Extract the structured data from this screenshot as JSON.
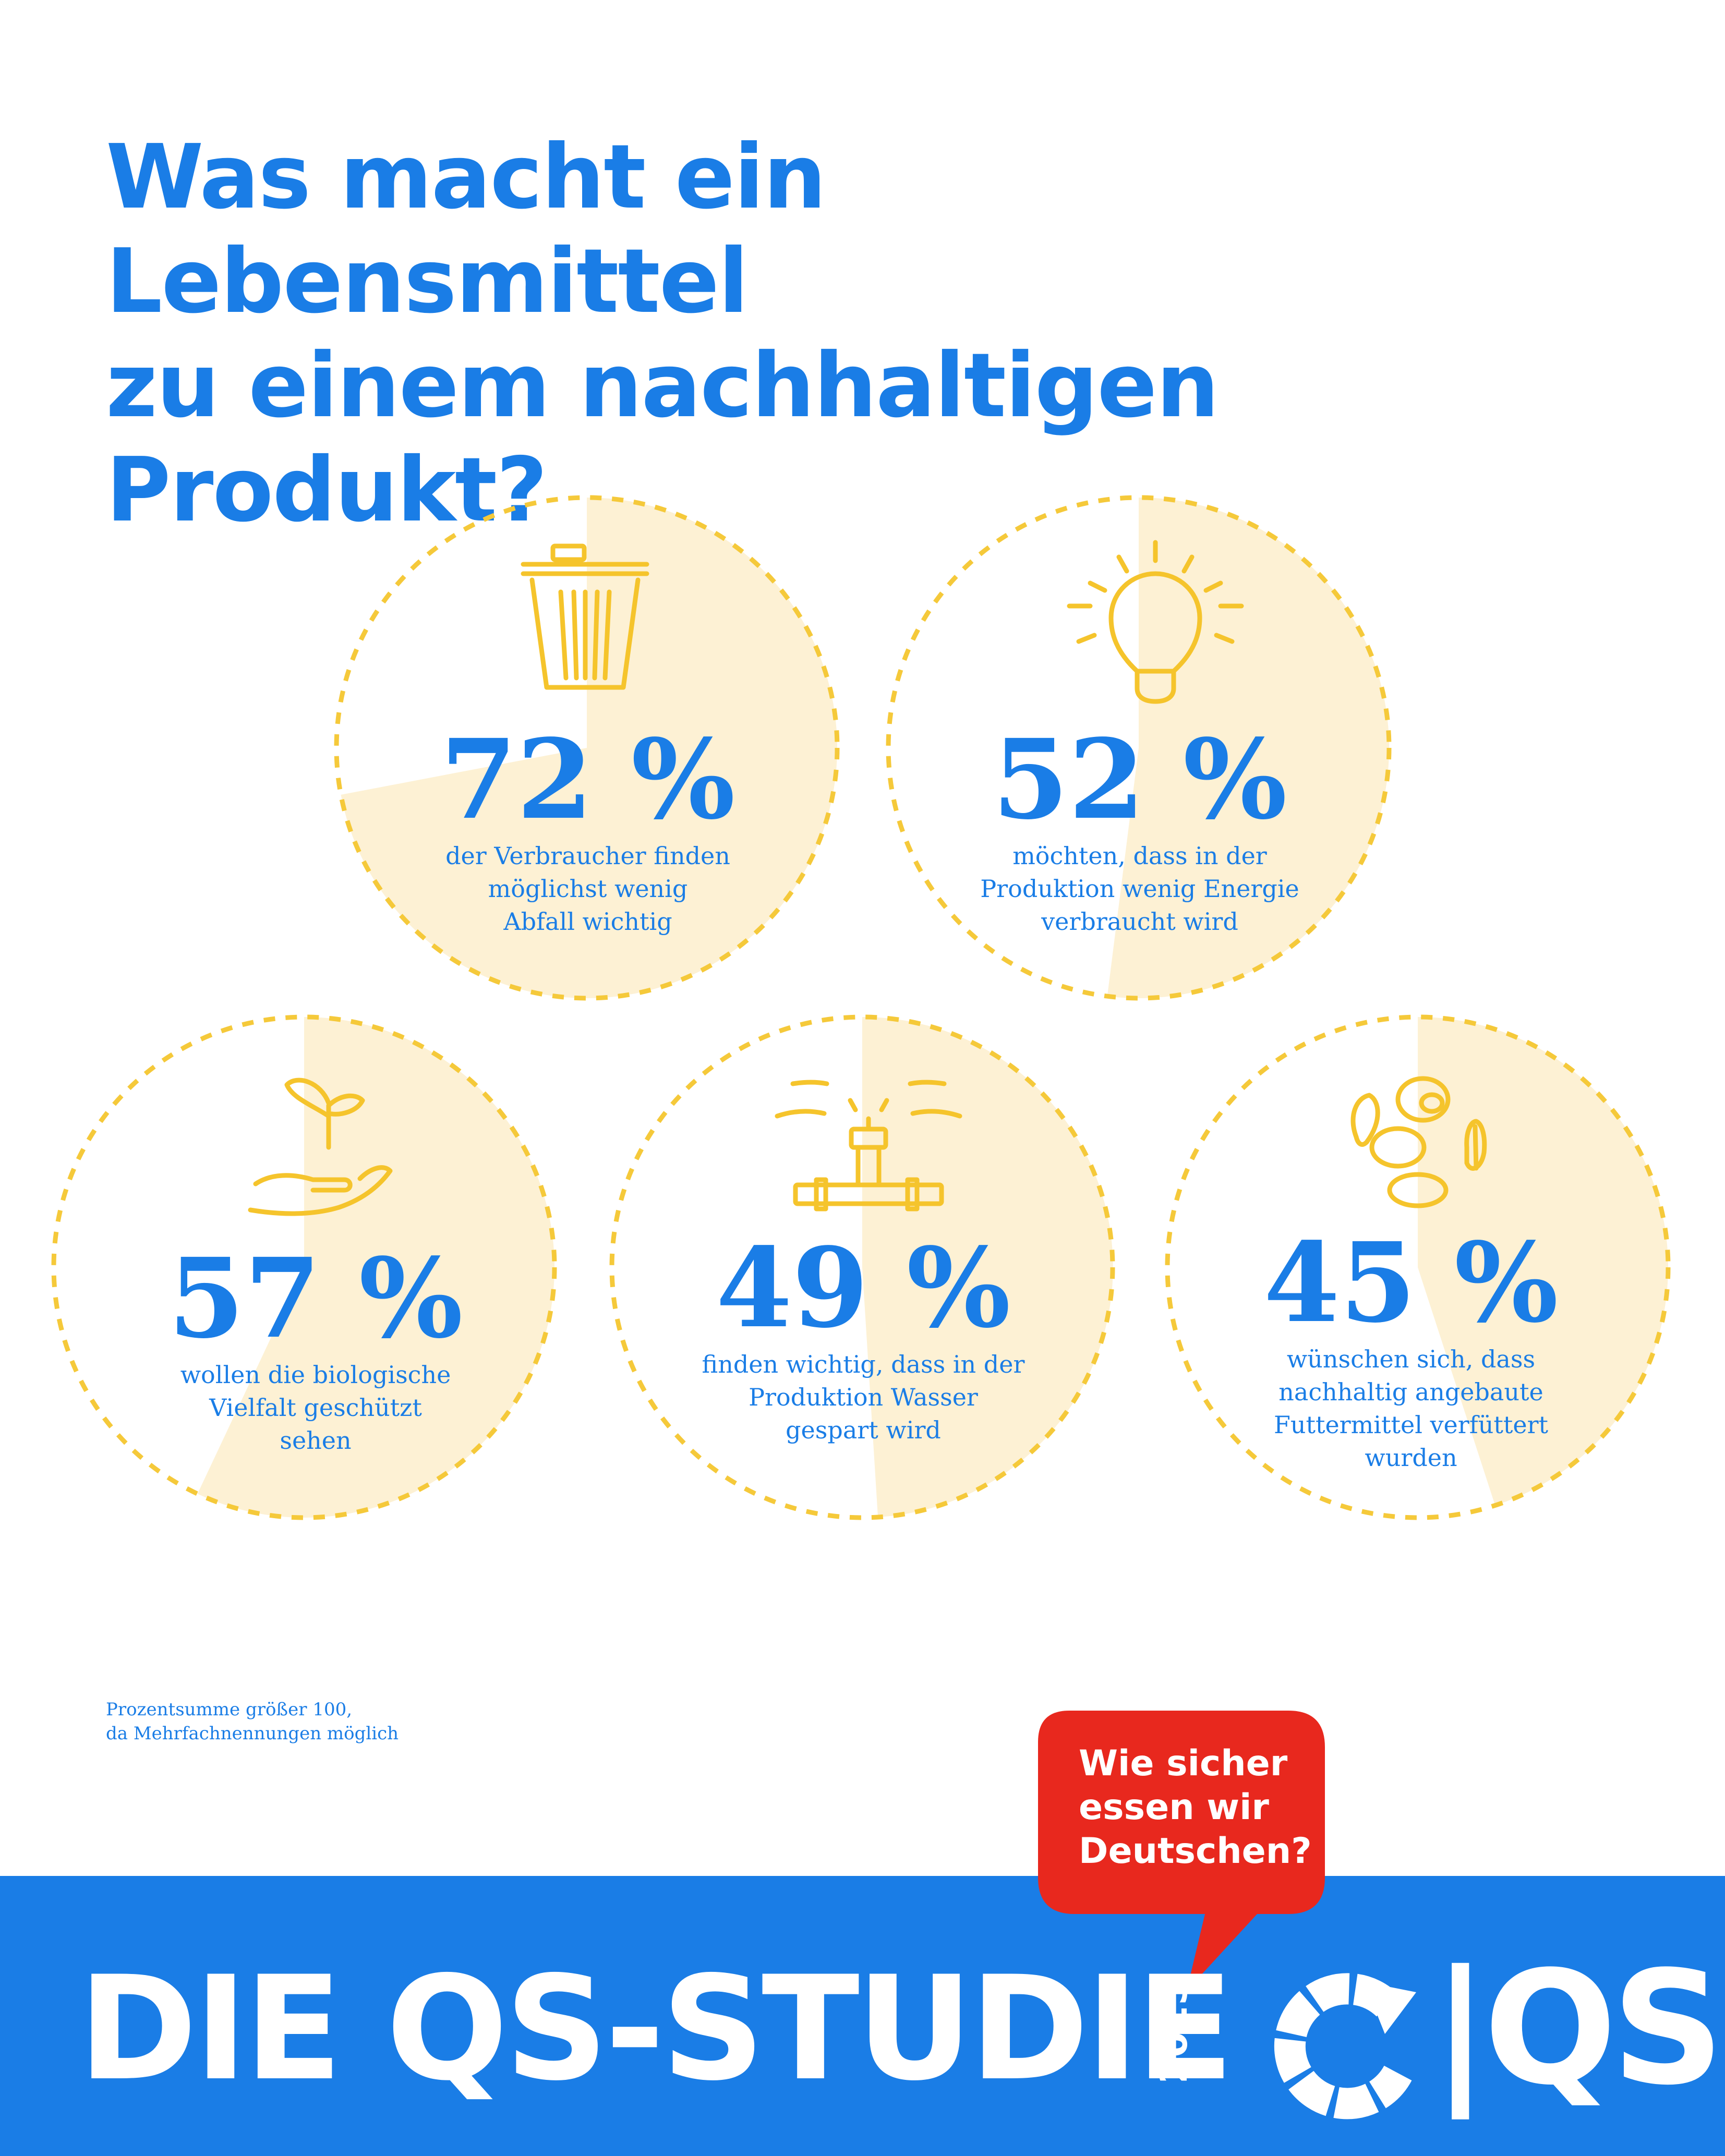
{
  "title_lines": [
    "Was macht ein Lebensmittel",
    "zu einem nachhaltigen",
    "Produkt?"
  ],
  "chart_data": {
    "type": "pie",
    "unit": "%",
    "items": [
      {
        "value": 72,
        "label": "72 %",
        "caption": [
          "der Verbraucher finden",
          "möglichst wenig",
          "Abfall wichtig"
        ],
        "icon": "trash-can-icon"
      },
      {
        "value": 52,
        "label": "52 %",
        "caption": [
          "möchten, dass in der",
          "Produktion wenig Energie",
          "verbraucht wird"
        ],
        "icon": "light-bulb-icon"
      },
      {
        "value": 57,
        "label": "57 %",
        "caption": [
          "wollen die biologische",
          "Vielfalt geschützt",
          "sehen"
        ],
        "icon": "plant-in-hand-icon"
      },
      {
        "value": 49,
        "label": "49 %",
        "caption": [
          "finden wichtig, dass in der",
          "Produktion Wasser",
          "gespart wird"
        ],
        "icon": "water-tap-icon"
      },
      {
        "value": 45,
        "label": "45 %",
        "caption": [
          "wünschen sich, dass",
          "nachhaltig angebaute",
          "Futtermittel verfüttert",
          "wurden"
        ],
        "icon": "seeds-icon"
      }
    ]
  },
  "footnote": [
    "Prozentsumme größer 100,",
    "da Mehrfachnennungen möglich"
  ],
  "bubble_lines": [
    "Wie sicher",
    "essen wir",
    "Deutschen?"
  ],
  "band_title": "DIE QS-STUDIE",
  "band_year": "2025",
  "logo_text": "|QS",
  "colors": {
    "blue": "#1a7de6",
    "fill": "#fdf1d4",
    "dash": "#f5c93a",
    "icon": "#f5c42c",
    "bubble": "#e8281e"
  }
}
